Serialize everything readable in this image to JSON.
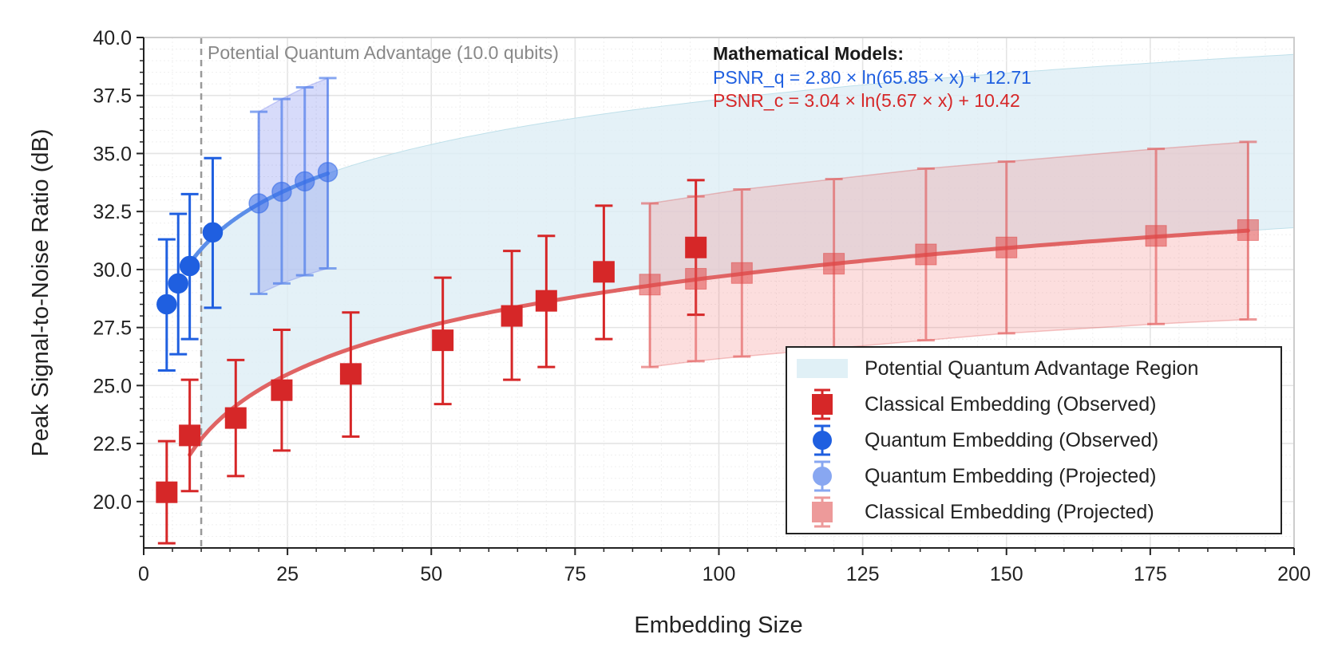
{
  "chart_data": {
    "type": "scatter",
    "title": "",
    "xlabel": "Embedding Size",
    "ylabel": "Peak Signal-to-Noise Ratio (dB)",
    "xlim": [
      0,
      200
    ],
    "ylim": [
      18,
      40
    ],
    "x_ticks": [
      "0",
      "25",
      "50",
      "75",
      "100",
      "125",
      "150",
      "175",
      "200"
    ],
    "y_ticks": [
      "20.0",
      "22.5",
      "25.0",
      "27.5",
      "30.0",
      "32.5",
      "35.0",
      "37.5",
      "40.0"
    ],
    "grid": true,
    "threshold": {
      "x": 10,
      "label": "Potential Quantum Advantage (10.0 qubits)"
    },
    "models": {
      "heading": "Mathematical Models:",
      "quantum": {
        "text": "PSNR_q = 2.80 × ln(65.85 × x) + 12.71",
        "a": 2.8,
        "b": 65.85,
        "c": 12.71
      },
      "classical": {
        "text": "PSNR_c = 3.04 × ln(5.67 × x) + 10.42",
        "a": 3.04,
        "b": 5.67,
        "c": 10.42
      }
    },
    "colors": {
      "quantum": "#1f5fe0",
      "quantum_fit": "#5b8ee8",
      "classical": "#d62728",
      "classical_fit": "#e06464",
      "advantage_fill": "#ddeef5",
      "threshold_line": "#9a9a9a"
    },
    "series": [
      {
        "name": "Classical Embedding (Observed)",
        "kind": "classical_observed",
        "points": [
          {
            "x": 4,
            "y": 20.4,
            "lo": 18.2,
            "hi": 22.6
          },
          {
            "x": 8,
            "y": 22.85,
            "lo": 20.45,
            "hi": 25.25
          },
          {
            "x": 16,
            "y": 23.6,
            "lo": 21.1,
            "hi": 26.1
          },
          {
            "x": 24,
            "y": 24.8,
            "lo": 22.2,
            "hi": 27.4
          },
          {
            "x": 36,
            "y": 25.5,
            "lo": 22.8,
            "hi": 28.15
          },
          {
            "x": 52,
            "y": 26.95,
            "lo": 24.2,
            "hi": 29.65
          },
          {
            "x": 64,
            "y": 28.0,
            "lo": 25.25,
            "hi": 30.8
          },
          {
            "x": 70,
            "y": 28.65,
            "lo": 25.8,
            "hi": 31.45
          },
          {
            "x": 80,
            "y": 29.9,
            "lo": 27.0,
            "hi": 32.75
          },
          {
            "x": 96,
            "y": 30.95,
            "lo": 28.05,
            "hi": 33.85
          }
        ]
      },
      {
        "name": "Quantum Embedding (Observed)",
        "kind": "quantum_observed",
        "points": [
          {
            "x": 4,
            "y": 28.5,
            "lo": 25.65,
            "hi": 31.3
          },
          {
            "x": 6,
            "y": 29.4,
            "lo": 26.35,
            "hi": 32.4
          },
          {
            "x": 8,
            "y": 30.15,
            "lo": 27.0,
            "hi": 33.25
          },
          {
            "x": 12,
            "y": 31.6,
            "lo": 28.35,
            "hi": 34.8
          }
        ]
      },
      {
        "name": "Quantum Embedding (Projected)",
        "kind": "quantum_projected",
        "points": [
          {
            "x": 20,
            "y": 32.85,
            "lo": 28.95,
            "hi": 36.8
          },
          {
            "x": 24,
            "y": 33.35,
            "lo": 29.4,
            "hi": 37.35
          },
          {
            "x": 28,
            "y": 33.8,
            "lo": 29.75,
            "hi": 37.85
          },
          {
            "x": 32,
            "y": 34.2,
            "lo": 30.05,
            "hi": 38.25
          }
        ]
      },
      {
        "name": "Classical Embedding (Projected)",
        "kind": "classical_projected",
        "points": [
          {
            "x": 88,
            "y": 29.35,
            "lo": 25.8,
            "hi": 32.85
          },
          {
            "x": 96,
            "y": 29.6,
            "lo": 26.05,
            "hi": 33.15
          },
          {
            "x": 104,
            "y": 29.85,
            "lo": 26.25,
            "hi": 33.45
          },
          {
            "x": 120,
            "y": 30.25,
            "lo": 26.6,
            "hi": 33.9
          },
          {
            "x": 136,
            "y": 30.65,
            "lo": 26.95,
            "hi": 34.35
          },
          {
            "x": 150,
            "y": 30.95,
            "lo": 27.25,
            "hi": 34.65
          },
          {
            "x": 176,
            "y": 31.45,
            "lo": 27.65,
            "hi": 35.2
          },
          {
            "x": 192,
            "y": 31.7,
            "lo": 27.85,
            "hi": 35.5
          }
        ]
      }
    ],
    "legend": {
      "position": "lower-right",
      "entries": [
        {
          "label": "Potential Quantum Advantage Region",
          "kind": "advantage_region"
        },
        {
          "label": "Classical Embedding (Observed)",
          "kind": "classical_observed"
        },
        {
          "label": "Quantum Embedding (Observed)",
          "kind": "quantum_observed"
        },
        {
          "label": "Quantum Embedding (Projected)",
          "kind": "quantum_projected"
        },
        {
          "label": "Classical Embedding (Projected)",
          "kind": "classical_projected"
        }
      ]
    }
  }
}
